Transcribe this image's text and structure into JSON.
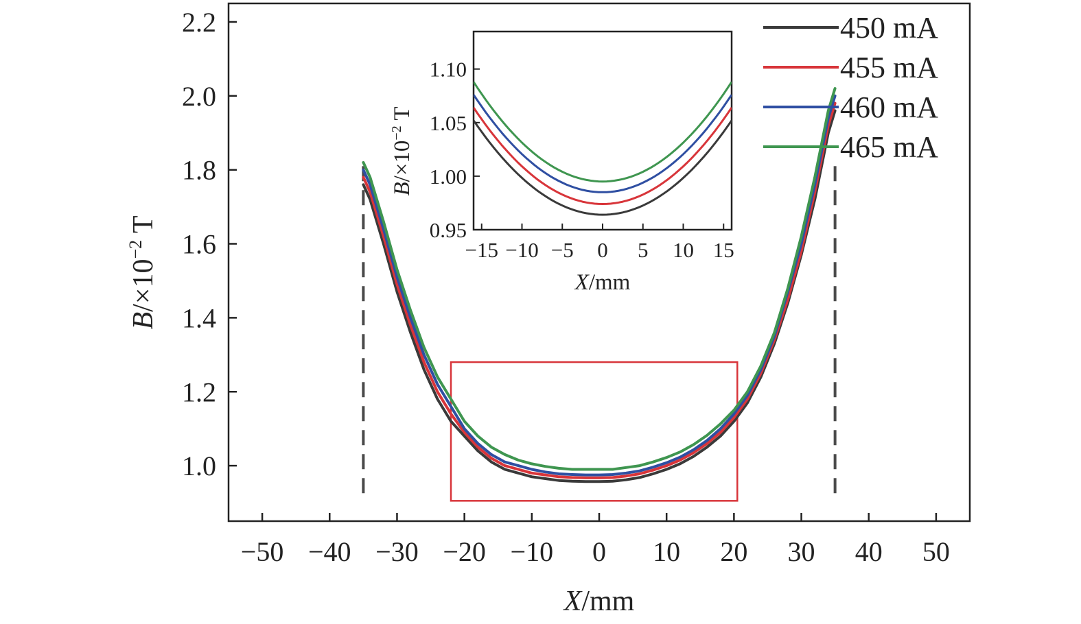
{
  "chart_data": {
    "type": "line",
    "title": "",
    "xlabel": {
      "italic": "X",
      "rest": "/mm"
    },
    "ylabel": {
      "italic": "B",
      "rest": "/×10",
      "sup": "−2",
      "unit": " T"
    },
    "xlim": [
      -55,
      55
    ],
    "ylim": [
      0.85,
      2.25
    ],
    "xticks": [
      -50,
      -40,
      -30,
      -20,
      -10,
      0,
      10,
      20,
      30,
      40,
      50
    ],
    "xtick_labels": [
      "−50",
      "−40",
      "−30",
      "−20",
      "−10",
      "0",
      "10",
      "20",
      "30",
      "40",
      "50"
    ],
    "yticks": [
      1.0,
      1.2,
      1.4,
      1.6,
      1.8,
      2.0,
      2.2
    ],
    "ytick_labels": [
      "1.0",
      "1.2",
      "1.4",
      "1.6",
      "1.8",
      "2.0",
      "2.2"
    ],
    "grid": false,
    "legend_position": "top-right",
    "x": [
      -35,
      -34,
      -32,
      -30,
      -28,
      -26,
      -24,
      -22,
      -20,
      -18,
      -16,
      -14,
      -12,
      -10,
      -8,
      -6,
      -4,
      -2,
      0,
      2,
      4,
      6,
      8,
      10,
      12,
      14,
      16,
      18,
      20,
      22,
      24,
      26,
      28,
      30,
      32,
      34,
      35
    ],
    "series": [
      {
        "name": "450 mA",
        "color": "#3a3a3a",
        "values": [
          1.76,
          1.72,
          1.6,
          1.47,
          1.36,
          1.26,
          1.18,
          1.12,
          1.08,
          1.04,
          1.01,
          0.99,
          0.98,
          0.97,
          0.965,
          0.96,
          0.958,
          0.957,
          0.957,
          0.958,
          0.962,
          0.968,
          0.978,
          0.99,
          1.005,
          1.025,
          1.05,
          1.08,
          1.12,
          1.17,
          1.24,
          1.33,
          1.44,
          1.57,
          1.72,
          1.9,
          1.96
        ]
      },
      {
        "name": "455 mA",
        "color": "#d8353a",
        "values": [
          1.78,
          1.74,
          1.62,
          1.49,
          1.38,
          1.28,
          1.2,
          1.14,
          1.09,
          1.05,
          1.02,
          1.0,
          0.99,
          0.98,
          0.975,
          0.97,
          0.968,
          0.967,
          0.967,
          0.968,
          0.972,
          0.978,
          0.988,
          1.0,
          1.015,
          1.035,
          1.06,
          1.09,
          1.13,
          1.18,
          1.25,
          1.34,
          1.45,
          1.58,
          1.74,
          1.92,
          1.98
        ]
      },
      {
        "name": "460 mA",
        "color": "#2f4fa2",
        "values": [
          1.8,
          1.76,
          1.64,
          1.51,
          1.4,
          1.3,
          1.22,
          1.16,
          1.1,
          1.06,
          1.03,
          1.01,
          1.0,
          0.99,
          0.983,
          0.978,
          0.976,
          0.975,
          0.975,
          0.976,
          0.98,
          0.986,
          0.996,
          1.008,
          1.023,
          1.043,
          1.068,
          1.1,
          1.14,
          1.19,
          1.26,
          1.35,
          1.47,
          1.6,
          1.76,
          1.94,
          2.0
        ]
      },
      {
        "name": "465 mA",
        "color": "#3f9650",
        "values": [
          1.82,
          1.78,
          1.66,
          1.53,
          1.42,
          1.32,
          1.24,
          1.18,
          1.12,
          1.08,
          1.05,
          1.03,
          1.015,
          1.005,
          0.998,
          0.993,
          0.99,
          0.99,
          0.99,
          0.99,
          0.995,
          1.0,
          1.01,
          1.022,
          1.037,
          1.057,
          1.082,
          1.113,
          1.15,
          1.2,
          1.27,
          1.36,
          1.48,
          1.62,
          1.78,
          1.96,
          2.02
        ]
      }
    ],
    "annotations": {
      "dashed_lines_x": [
        -35,
        35
      ],
      "dashed_line_color": "#4a4a4a",
      "highlight_rect": {
        "x0": -22,
        "x1": 20.5,
        "y0": 0.905,
        "y1": 1.28,
        "color": "#d8353a"
      }
    },
    "inset": {
      "xlabel": {
        "italic": "X",
        "rest": "/mm"
      },
      "ylabel": {
        "italic": "B",
        "rest": "/×10",
        "sup": "−2",
        "unit": " T"
      },
      "xlim": [
        -16,
        16
      ],
      "ylim": [
        0.95,
        1.135
      ],
      "xticks": [
        -15,
        -10,
        -5,
        0,
        5,
        10,
        15
      ],
      "xtick_labels": [
        "−15",
        "−10",
        "−5",
        "0",
        "5",
        "10",
        "15"
      ],
      "yticks": [
        0.95,
        1.0,
        1.05,
        1.1
      ],
      "ytick_labels": [
        "0.95",
        "1.00",
        "1.05",
        "1.10"
      ],
      "parabolas": [
        {
          "name": "450 mA",
          "min": 0.964,
          "edge16": 1.052
        },
        {
          "name": "455 mA",
          "min": 0.974,
          "edge16": 1.064
        },
        {
          "name": "460 mA",
          "min": 0.985,
          "edge16": 1.076
        },
        {
          "name": "465 mA",
          "min": 0.995,
          "edge16": 1.088
        }
      ]
    }
  }
}
